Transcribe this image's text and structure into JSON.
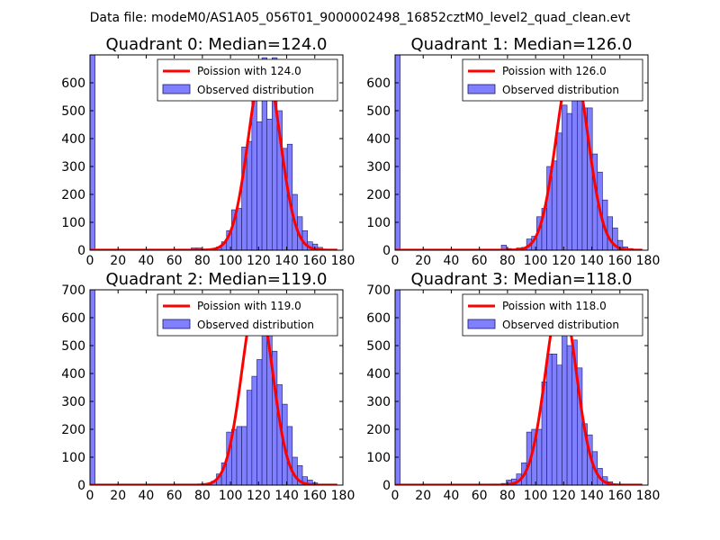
{
  "suptitle": "Data file: modeM0/AS1A05_056T01_9000002498_16852cztM0_level2_quad_clean.evt",
  "colors": {
    "bar_fill": "#7f7fff",
    "bar_edge": "#1a1a66",
    "curve": "#ff0000",
    "axis": "#000000"
  },
  "chart_data": [
    {
      "type": "bar",
      "title": "Quadrant 0: Median=124.0",
      "legend": {
        "curve_label": "Poission with 124.0",
        "bar_label": "Observed distribution",
        "placement": "upper-right"
      },
      "xlim": [
        0,
        180
      ],
      "ylim": [
        0,
        700
      ],
      "xticks": [
        "0",
        "20",
        "40",
        "60",
        "80",
        "100",
        "120",
        "140",
        "160",
        "180"
      ],
      "yticks": [
        "0",
        "100",
        "200",
        "300",
        "400",
        "500",
        "600"
      ],
      "bin_width": 3.6,
      "bins": [
        [
          0,
          700
        ],
        [
          72,
          8
        ],
        [
          75.6,
          8
        ],
        [
          79.2,
          4
        ],
        [
          82.8,
          4
        ],
        [
          86.4,
          6
        ],
        [
          90,
          12
        ],
        [
          93.6,
          30
        ],
        [
          97.2,
          70
        ],
        [
          100.8,
          145
        ],
        [
          104.4,
          150
        ],
        [
          108,
          370
        ],
        [
          111.6,
          390
        ],
        [
          115.2,
          570
        ],
        [
          118.8,
          460
        ],
        [
          122.4,
          690
        ],
        [
          126,
          470
        ],
        [
          129.6,
          690
        ],
        [
          133.2,
          500
        ],
        [
          136.8,
          365
        ],
        [
          140.4,
          380
        ],
        [
          144,
          200
        ],
        [
          147.6,
          120
        ],
        [
          151.2,
          70
        ],
        [
          154.8,
          30
        ],
        [
          158.4,
          22
        ],
        [
          162,
          10
        ],
        [
          165.6,
          4
        ],
        [
          169.2,
          2
        ]
      ],
      "poisson_mean": 124.0,
      "poisson_peak": 675
    },
    {
      "type": "bar",
      "title": "Quadrant 1: Median=126.0",
      "legend": {
        "curve_label": "Poission with 126.0",
        "bar_label": "Observed distribution",
        "placement": "upper-right"
      },
      "xlim": [
        0,
        180
      ],
      "ylim": [
        0,
        700
      ],
      "xticks": [
        "0",
        "20",
        "40",
        "60",
        "80",
        "100",
        "120",
        "140",
        "160",
        "180"
      ],
      "yticks": [
        "0",
        "100",
        "200",
        "300",
        "400",
        "500",
        "600"
      ],
      "bin_width": 3.6,
      "bins": [
        [
          0,
          700
        ],
        [
          75.6,
          18
        ],
        [
          79.2,
          6
        ],
        [
          82.8,
          4
        ],
        [
          86.4,
          8
        ],
        [
          90,
          10
        ],
        [
          93.6,
          40
        ],
        [
          97.2,
          50
        ],
        [
          100.8,
          120
        ],
        [
          104.4,
          150
        ],
        [
          108,
          300
        ],
        [
          111.6,
          320
        ],
        [
          115.2,
          420
        ],
        [
          118.8,
          520
        ],
        [
          122.4,
          490
        ],
        [
          126,
          680
        ],
        [
          129.6,
          660
        ],
        [
          133.2,
          510
        ],
        [
          136.8,
          510
        ],
        [
          140.4,
          345
        ],
        [
          144,
          280
        ],
        [
          147.6,
          180
        ],
        [
          151.2,
          120
        ],
        [
          154.8,
          80
        ],
        [
          158.4,
          35
        ],
        [
          162,
          12
        ],
        [
          165.6,
          6
        ]
      ],
      "poisson_mean": 126.0,
      "poisson_peak": 675
    },
    {
      "type": "bar",
      "title": "Quadrant 2: Median=119.0",
      "legend": {
        "curve_label": "Poission with 119.0",
        "bar_label": "Observed distribution",
        "placement": "upper-right"
      },
      "xlim": [
        0,
        180
      ],
      "ylim": [
        0,
        700
      ],
      "xticks": [
        "0",
        "20",
        "40",
        "60",
        "80",
        "100",
        "120",
        "140",
        "160",
        "180"
      ],
      "yticks": [
        "0",
        "100",
        "200",
        "300",
        "400",
        "500",
        "600",
        "700"
      ],
      "bin_width": 3.6,
      "bins": [
        [
          0,
          700
        ],
        [
          79.2,
          4
        ],
        [
          82.8,
          4
        ],
        [
          86.4,
          14
        ],
        [
          90,
          40
        ],
        [
          93.6,
          80
        ],
        [
          97.2,
          190
        ],
        [
          100.8,
          200
        ],
        [
          104.4,
          210
        ],
        [
          108,
          210
        ],
        [
          111.6,
          340
        ],
        [
          115.2,
          390
        ],
        [
          118.8,
          450
        ],
        [
          122.4,
          590
        ],
        [
          126,
          600
        ],
        [
          129.6,
          480
        ],
        [
          133.2,
          360
        ],
        [
          136.8,
          290
        ],
        [
          140.4,
          210
        ],
        [
          144,
          100
        ],
        [
          147.6,
          70
        ],
        [
          151.2,
          30
        ],
        [
          154.8,
          18
        ],
        [
          158.4,
          8
        ]
      ],
      "poisson_mean": 119.0,
      "poisson_peak": 675
    },
    {
      "type": "bar",
      "title": "Quadrant 3: Median=118.0",
      "legend": {
        "curve_label": "Poission with 118.0",
        "bar_label": "Observed distribution",
        "placement": "upper-right"
      },
      "xlim": [
        0,
        180
      ],
      "ylim": [
        0,
        700
      ],
      "xticks": [
        "0",
        "20",
        "40",
        "60",
        "80",
        "100",
        "120",
        "140",
        "160",
        "180"
      ],
      "yticks": [
        "0",
        "100",
        "200",
        "300",
        "400",
        "500",
        "600",
        "700"
      ],
      "bin_width": 3.6,
      "bins": [
        [
          0,
          700
        ],
        [
          68.4,
          4
        ],
        [
          72,
          4
        ],
        [
          75.6,
          6
        ],
        [
          79.2,
          18
        ],
        [
          82.8,
          22
        ],
        [
          86.4,
          40
        ],
        [
          90,
          80
        ],
        [
          93.6,
          190
        ],
        [
          97.2,
          200
        ],
        [
          100.8,
          200
        ],
        [
          104.4,
          370
        ],
        [
          108,
          470
        ],
        [
          111.6,
          470
        ],
        [
          115.2,
          430
        ],
        [
          118.8,
          680
        ],
        [
          122.4,
          500
        ],
        [
          126,
          520
        ],
        [
          129.6,
          420
        ],
        [
          133.2,
          220
        ],
        [
          136.8,
          180
        ],
        [
          140.4,
          120
        ],
        [
          144,
          60
        ],
        [
          147.6,
          30
        ],
        [
          151.2,
          12
        ]
      ],
      "poisson_mean": 118.0,
      "poisson_peak": 675
    }
  ]
}
